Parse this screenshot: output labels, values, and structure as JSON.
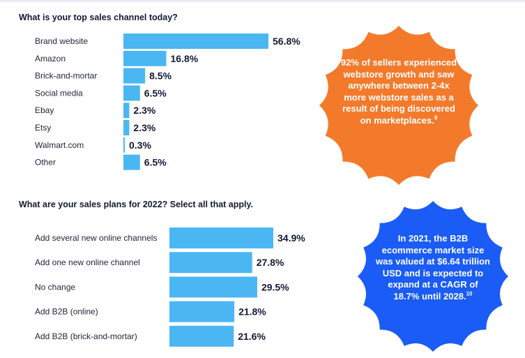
{
  "chart_data": [
    {
      "type": "bar",
      "orientation": "horizontal",
      "title": "What is your top sales channel today?",
      "categories": [
        "Brand website",
        "Amazon",
        "Brick-and-mortar",
        "Social media",
        "Ebay",
        "Etsy",
        "Walmart.com",
        "Other"
      ],
      "values": [
        56.8,
        16.8,
        8.5,
        6.5,
        2.3,
        2.3,
        0.3,
        6.5
      ],
      "value_labels": [
        "56.8%",
        "16.8%",
        "8.5%",
        "6.5%",
        "2.3%",
        "2.3%",
        "0.3%",
        "6.5%"
      ],
      "xlim": [
        0,
        56.8
      ],
      "grid": false,
      "bar_color": "#4bb7f2"
    },
    {
      "type": "bar",
      "orientation": "horizontal",
      "title": "What are your sales plans for 2022? Select all that apply.",
      "categories": [
        "Add several new online channels",
        "Add one new online channel",
        "No change",
        "Add B2B (online)",
        "Add B2B (brick-and-mortar)"
      ],
      "values": [
        34.9,
        27.8,
        29.5,
        21.8,
        21.6
      ],
      "value_labels": [
        "34.9%",
        "27.8%",
        "29.5%",
        "21.8%",
        "21.6%"
      ],
      "xlim": [
        0,
        34.9
      ],
      "grid": false,
      "bar_color": "#4bb7f2"
    }
  ],
  "callouts": [
    {
      "text": "92% of sellers experienced webstore growth and saw anywhere between 2-4x more webstore sales as a result of being discovered on marketplaces.",
      "footnote": "9",
      "color": "#f47a2b",
      "shape": "starburst"
    },
    {
      "text": "In 2021, the B2B ecommerce market size was valued at $6.64 trillion USD and is expected to expand at a CAGR of 18.7% until 2028.",
      "footnote": "10",
      "color": "#1a5cf5",
      "shape": "starburst"
    }
  ]
}
